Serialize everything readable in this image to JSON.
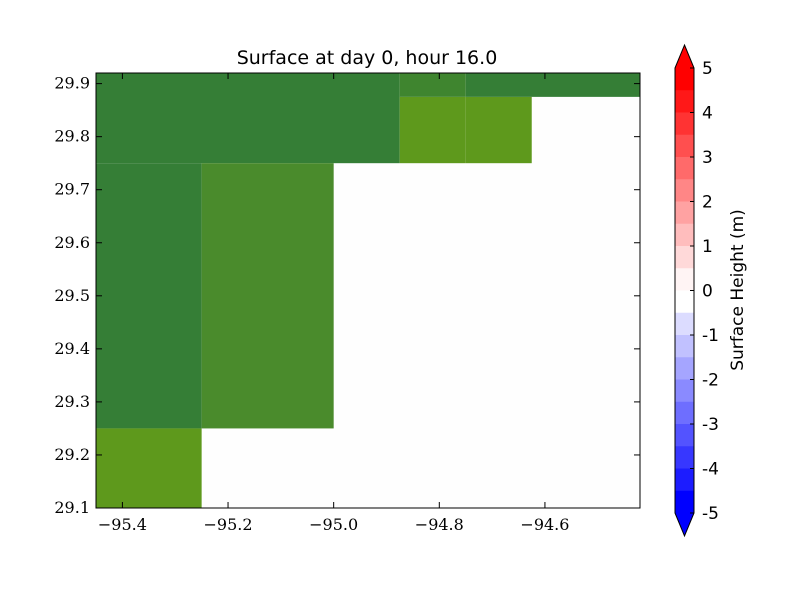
{
  "chart_data": {
    "type": "heatmap",
    "title": "Surface at day 0, hour 16.0",
    "xlabel": "",
    "ylabel": "",
    "xlim": [
      -95.45,
      -94.42
    ],
    "ylim": [
      29.1,
      29.92
    ],
    "x_ticks": [
      -95.4,
      -95.2,
      -95.0,
      -94.8,
      -94.6
    ],
    "x_tick_labels": [
      "−95.4",
      "−95.2",
      "−95.0",
      "−94.8",
      "−94.6"
    ],
    "y_ticks": [
      29.1,
      29.2,
      29.3,
      29.4,
      29.5,
      29.6,
      29.7,
      29.8,
      29.9
    ],
    "y_tick_labels": [
      "29.1",
      "29.2",
      "29.3",
      "29.4",
      "29.5",
      "29.6",
      "29.7",
      "29.8",
      "29.9"
    ],
    "background_color": "#fefefe",
    "cells": [
      {
        "x0": -95.45,
        "x1": -94.875,
        "y0": 29.75,
        "y1": 29.92,
        "color": "#357e36"
      },
      {
        "x0": -95.45,
        "x1": -95.25,
        "y0": 29.25,
        "y1": 29.75,
        "color": "#357e36"
      },
      {
        "x0": -95.25,
        "x1": -95.0,
        "y0": 29.25,
        "y1": 29.75,
        "color": "#4a8b2c"
      },
      {
        "x0": -95.45,
        "x1": -95.25,
        "y0": 29.1,
        "y1": 29.25,
        "color": "#5e991c"
      },
      {
        "x0": -94.875,
        "x1": -94.75,
        "y0": 29.75,
        "y1": 29.875,
        "color": "#5e991c"
      },
      {
        "x0": -94.75,
        "x1": -94.625,
        "y0": 29.75,
        "y1": 29.875,
        "color": "#5e991c"
      },
      {
        "x0": -94.875,
        "x1": -94.75,
        "y0": 29.875,
        "y1": 29.92,
        "color": "#3f852f"
      },
      {
        "x0": -94.75,
        "x1": -94.42,
        "y0": 29.875,
        "y1": 29.92,
        "color": "#357e36"
      }
    ],
    "colorbar": {
      "label": "Surface Height (m)",
      "min": -5,
      "max": 5,
      "ticks": [
        5,
        4,
        3,
        2,
        1,
        0,
        -1,
        -2,
        -3,
        -4,
        -5
      ],
      "tick_labels": [
        "5",
        "4",
        "3",
        "2",
        "1",
        "0",
        "-1",
        "-2",
        "-3",
        "-4",
        "-5"
      ],
      "levels": [
        {
          "from": 4.5,
          "to": 5.0,
          "color": "#ff0000"
        },
        {
          "from": 4.0,
          "to": 4.5,
          "color": "#ff1818"
        },
        {
          "from": 3.5,
          "to": 4.0,
          "color": "#ff3333"
        },
        {
          "from": 3.0,
          "to": 3.5,
          "color": "#ff4f4f"
        },
        {
          "from": 2.5,
          "to": 3.0,
          "color": "#ff6a6a"
        },
        {
          "from": 2.0,
          "to": 2.5,
          "color": "#ff8686"
        },
        {
          "from": 1.5,
          "to": 2.0,
          "color": "#ffa2a2"
        },
        {
          "from": 1.0,
          "to": 1.5,
          "color": "#ffbdbd"
        },
        {
          "from": 0.5,
          "to": 1.0,
          "color": "#ffd9d9"
        },
        {
          "from": 0.0,
          "to": 0.5,
          "color": "#fff4f4"
        },
        {
          "from": -0.5,
          "to": 0.0,
          "color": "#ffffff"
        },
        {
          "from": -1.0,
          "to": -0.5,
          "color": "#dcdcff"
        },
        {
          "from": -1.5,
          "to": -1.0,
          "color": "#c1c1ff"
        },
        {
          "from": -2.0,
          "to": -1.5,
          "color": "#a5a5ff"
        },
        {
          "from": -2.5,
          "to": -2.0,
          "color": "#8a8aff"
        },
        {
          "from": -3.0,
          "to": -2.5,
          "color": "#6e6eff"
        },
        {
          "from": -3.5,
          "to": -3.0,
          "color": "#5353ff"
        },
        {
          "from": -4.0,
          "to": -3.5,
          "color": "#3737ff"
        },
        {
          "from": -4.5,
          "to": -4.0,
          "color": "#1c1cff"
        },
        {
          "from": -5.0,
          "to": -4.5,
          "color": "#0000ff"
        }
      ],
      "extend_max_color": "#ff0000",
      "extend_min_color": "#0000ff"
    }
  }
}
